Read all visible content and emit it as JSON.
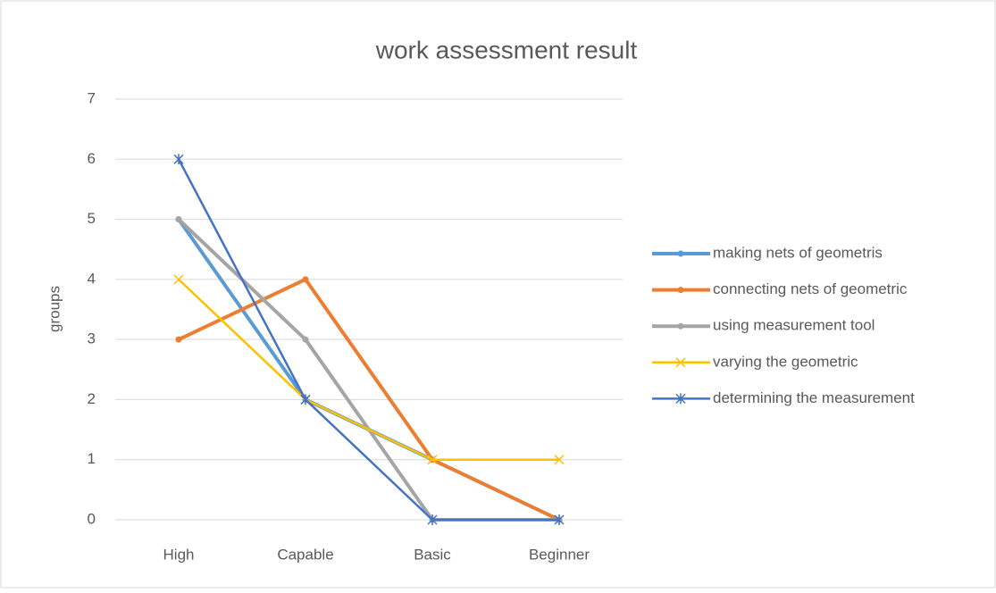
{
  "chart_data": {
    "type": "line",
    "title": "work assessment result",
    "y_label": "groups",
    "categories": [
      "High",
      "Capable",
      "Basic",
      "Beginner"
    ],
    "series": [
      {
        "name": "making nets of geometris",
        "color": "#5b9bd5",
        "marker": "circle",
        "values": [
          5,
          2,
          1,
          0
        ]
      },
      {
        "name": "connecting nets of geometric",
        "color": "#ed7d31",
        "marker": "circle",
        "values": [
          3,
          4,
          1,
          0
        ]
      },
      {
        "name": "using measurement tool",
        "color": "#a5a5a5",
        "marker": "circle",
        "values": [
          5,
          3,
          0,
          0
        ]
      },
      {
        "name": "varying the geometric",
        "color": "#ffc000",
        "marker": "x",
        "values": [
          4,
          2,
          1,
          1
        ]
      },
      {
        "name": "determining the measurement",
        "color": "#4472c4",
        "marker": "star",
        "values": [
          6,
          2,
          0,
          0
        ]
      }
    ],
    "ylim": [
      0,
      7
    ],
    "yticks": [
      0,
      1,
      2,
      3,
      4,
      5,
      6,
      7
    ],
    "grid": true,
    "legend": "right"
  }
}
